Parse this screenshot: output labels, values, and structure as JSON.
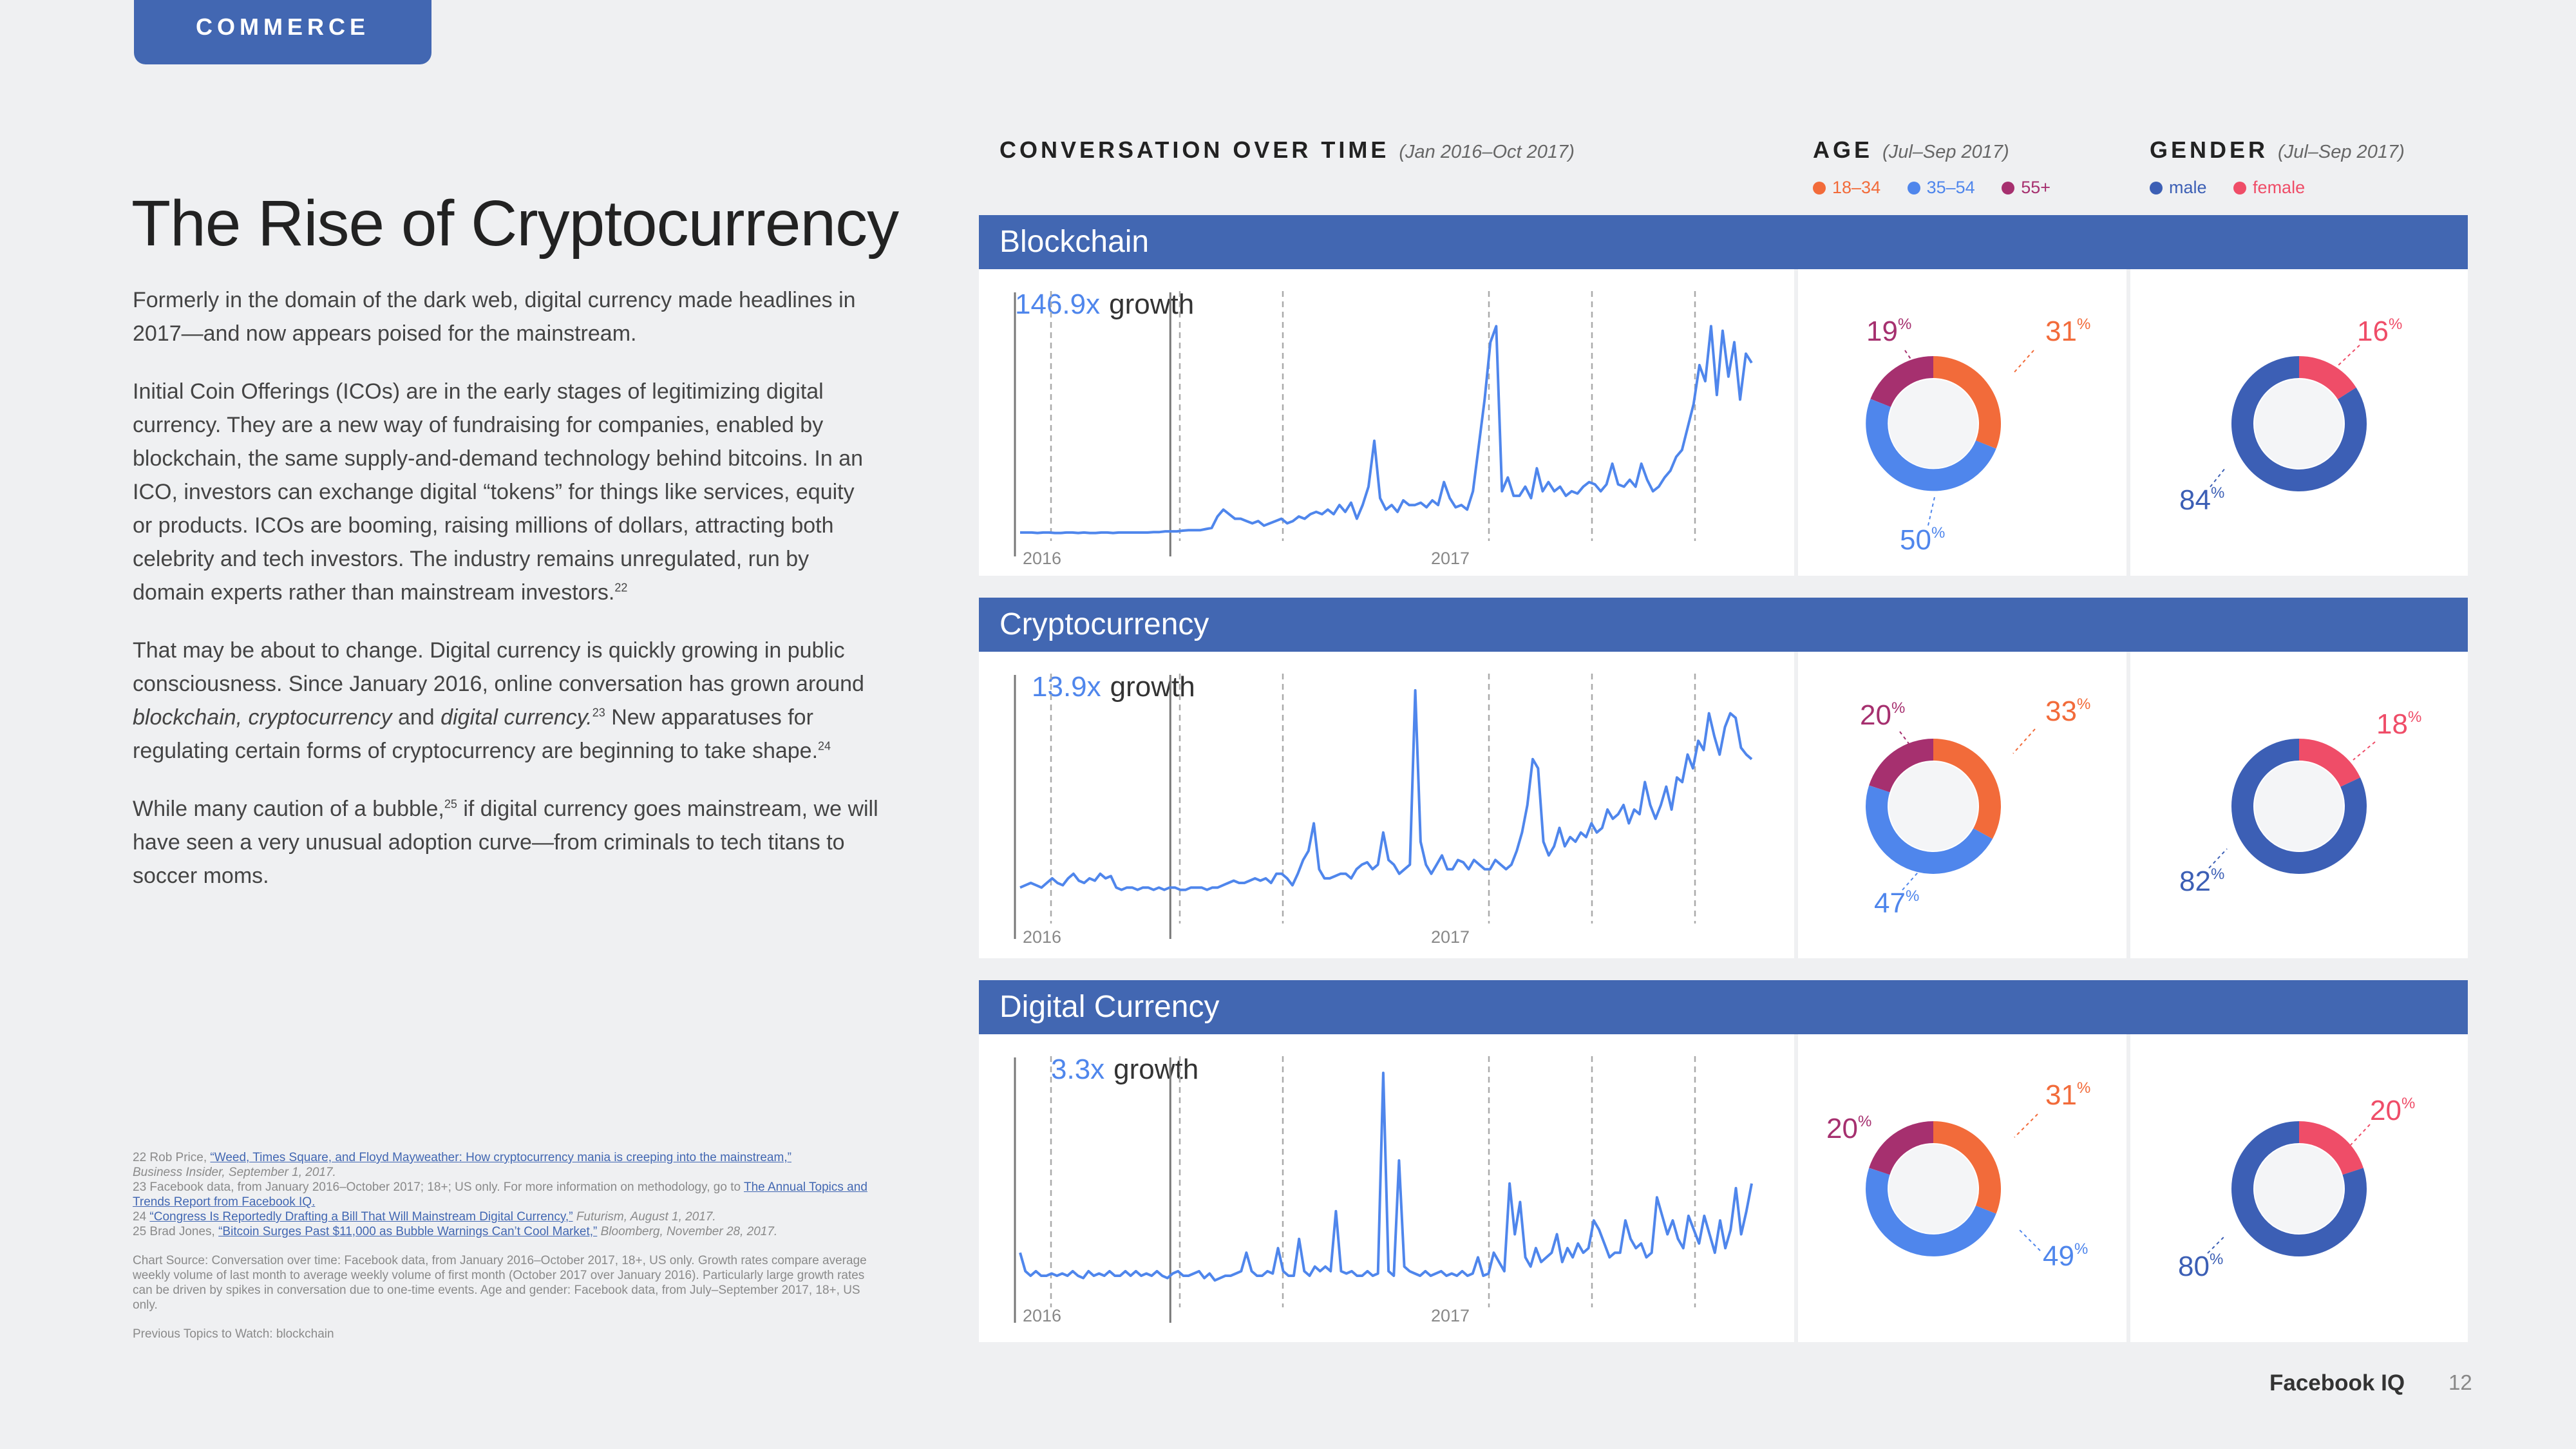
{
  "section_tab": "COMMERCE",
  "title": "The Rise of Cryptocurrency",
  "intro": {
    "p1": "Formerly in the domain of the dark web, digital currency made headlines in 2017—and now appears poised for the mainstream.",
    "p2": "Initial Coin Offerings (ICOs) are in the early stages of legitimizing digital currency. They are a new way of fundraising for companies, enabled by blockchain, the same supply-and-demand technology behind bitcoins. In an ICO, investors can exchange digital “tokens” for things like services, equity or products. ICOs are booming, raising millions of dollars, attracting both celebrity and tech investors. The industry remains unregulated, run by domain experts rather than mainstream investors.",
    "p2_ref": "22",
    "p3_a": "That may be about to change. Digital currency is quickly growing in public consciousness. Since January 2016, online conversation has grown around ",
    "p3_t1": "blockchain, cryptocurrency",
    "p3_b": " and ",
    "p3_t2": "digital currency.",
    "p3_ref1": "23",
    "p3_c": " New apparatuses for regulating certain forms of cryptocurrency are beginning to take shape.",
    "p3_ref2": "24",
    "p4_a": "While many caution of a bubble,",
    "p4_ref": "25",
    "p4_b": " if digital currency goes mainstream, we will have seen a very unusual adoption curve—from criminals to tech titans to soccer moms."
  },
  "footnotes": {
    "fn22_pre": "22  Rob Price, ",
    "fn22_link": "“Weed, Times Square, and Floyd Mayweather: How cryptocurrency mania is creeping into the mainstream,”",
    "fn22_post": "Business Insider, September 1, 2017.",
    "fn23_pre": "23  Facebook data, from January 2016–October 2017; 18+; US only. For more information on methodology, go to ",
    "fn23_link": "The Annual Topics and Trends Report from Facebook IQ.",
    "fn24_pre": "24  ",
    "fn24_link": "“Congress Is Reportedly Drafting a Bill That Will Mainstream Digital Currency,”",
    "fn24_post": " Futurism, August 1, 2017.",
    "fn25_pre": "25  Brad Jones, ",
    "fn25_link": "“Bitcoin Surges Past $11,000 as Bubble Warnings Can’t Cool Market,”",
    "fn25_post": " Bloomberg, November 28, 2017.",
    "chart_source": "Chart Source: Conversation over time: Facebook data, from January 2016–October 2017, 18+, US only. Growth rates compare average weekly volume of last month to average weekly volume of first month (October 2017 over January 2016). Particularly large growth rates can be driven by spikes in conversation due to one-time events. Age and gender: Facebook data, from July–September 2017, 18+, US only.",
    "previous": "Previous Topics to Watch: blockchain"
  },
  "headers": {
    "conversation": "CONVERSATION OVER TIME",
    "conversation_range": "(Jan 2016–Oct 2017)",
    "age": "AGE",
    "age_range": "(Jul–Sep 2017)",
    "gender": "GENDER",
    "gender_range": "(Jul–Sep 2017)"
  },
  "legend": {
    "age": [
      {
        "label": "18–34",
        "color": "#f26b3a"
      },
      {
        "label": "35–54",
        "color": "#4f86ec"
      },
      {
        "label": "55+",
        "color": "#a6306f"
      }
    ],
    "gender": [
      {
        "label": "male",
        "color": "#3c5fb5"
      },
      {
        "label": "female",
        "color": "#ef4d68"
      }
    ]
  },
  "growth_word": "growth",
  "pct_sign": "%",
  "years": [
    "2016",
    "2017"
  ],
  "brand": "Facebook IQ",
  "page_number": "12",
  "chart_data": [
    {
      "type": "line",
      "topic": "Blockchain",
      "growth": "146.9x",
      "x_range": [
        "2016-01",
        "2017-10"
      ],
      "y_range": [
        0,
        100
      ],
      "values": [
        2,
        2,
        2,
        1.8,
        2,
        2,
        1.8,
        1.8,
        2,
        2,
        1.8,
        2,
        1.8,
        1.8,
        2,
        2,
        1.8,
        2,
        2,
        2,
        2,
        2,
        2,
        2.2,
        2.2,
        2.5,
        2.5,
        2.5,
        2.8,
        3,
        3,
        3,
        3.5,
        4,
        9,
        12,
        10,
        8,
        8,
        7,
        6,
        7,
        5,
        6,
        7,
        8,
        6,
        7,
        9,
        8,
        10,
        11,
        10,
        12,
        10,
        14,
        11,
        15,
        8,
        14,
        22,
        42,
        17,
        12,
        14,
        11,
        16,
        14,
        14,
        15,
        13,
        16,
        14,
        24,
        17,
        13,
        14,
        12,
        20,
        40,
        60,
        85,
        92,
        20,
        26,
        18,
        18,
        22,
        17,
        30,
        20,
        24,
        20,
        22,
        18,
        20,
        19,
        22,
        24,
        23,
        20,
        23,
        32,
        23,
        22,
        25,
        22,
        32,
        25,
        20,
        22,
        26,
        29,
        35,
        38,
        48,
        58,
        75,
        68,
        92,
        62,
        90,
        70,
        85,
        60,
        80,
        76
      ]
    },
    {
      "type": "line",
      "topic": "Cryptocurrency",
      "growth": "13.9x",
      "x_range": [
        "2016-01",
        "2017-10"
      ],
      "y_range": [
        0,
        100
      ],
      "values": [
        14,
        15,
        16,
        15,
        14,
        16,
        18,
        16,
        15,
        18,
        20,
        17,
        16,
        18,
        17,
        20,
        18,
        19,
        14,
        13,
        14,
        14,
        13,
        14,
        14,
        13,
        14,
        13,
        14,
        14,
        13,
        13,
        14,
        14,
        14,
        13,
        14,
        14,
        15,
        16,
        17,
        16,
        16,
        17,
        18,
        17,
        18,
        16,
        20,
        20,
        18,
        15,
        20,
        26,
        30,
        42,
        22,
        18,
        18,
        19,
        20,
        20,
        18,
        22,
        24,
        25,
        22,
        24,
        38,
        26,
        24,
        20,
        22,
        24,
        100,
        34,
        24,
        20,
        24,
        28,
        22,
        22,
        26,
        25,
        22,
        26,
        24,
        22,
        22,
        26,
        24,
        22,
        24,
        30,
        38,
        50,
        70,
        66,
        34,
        28,
        32,
        40,
        32,
        36,
        34,
        38,
        36,
        42,
        38,
        40,
        48,
        44,
        46,
        50,
        42,
        48,
        46,
        60,
        50,
        44,
        50,
        58,
        48,
        62,
        60,
        72,
        66,
        78,
        74,
        90,
        80,
        72,
        84,
        90,
        88,
        75,
        72,
        70
      ]
    },
    {
      "type": "line",
      "topic": "Digital Currency",
      "growth": "3.3x",
      "x_range": [
        "2016-01",
        "2017-10"
      ],
      "y_range": [
        0,
        100
      ],
      "values": [
        22,
        14,
        12,
        14,
        12,
        12,
        13,
        12,
        13,
        12,
        14,
        12,
        11,
        14,
        12,
        13,
        12,
        14,
        12,
        12,
        14,
        12,
        14,
        12,
        13,
        12,
        14,
        12,
        11,
        13,
        14,
        12,
        12,
        13,
        14,
        11,
        13,
        10,
        11,
        12,
        12,
        13,
        14,
        22,
        14,
        12,
        12,
        14,
        13,
        24,
        14,
        12,
        12,
        28,
        14,
        12,
        16,
        14,
        16,
        14,
        40,
        14,
        13,
        14,
        12,
        12,
        14,
        12,
        13,
        100,
        14,
        12,
        62,
        16,
        14,
        13,
        12,
        14,
        12,
        13,
        14,
        12,
        13,
        12,
        14,
        12,
        13,
        20,
        12,
        13,
        22,
        18,
        14,
        52,
        30,
        44,
        20,
        16,
        24,
        18,
        20,
        22,
        30,
        18,
        24,
        20,
        26,
        22,
        24,
        36,
        32,
        26,
        20,
        22,
        22,
        36,
        28,
        24,
        26,
        20,
        22,
        46,
        38,
        30,
        36,
        28,
        24,
        38,
        32,
        26,
        38,
        30,
        22,
        36,
        24,
        32,
        50,
        30,
        40,
        52
      ]
    }
  ],
  "age_data": [
    {
      "topic": "Blockchain",
      "values": {
        "18–34": 31,
        "35–54": 50,
        "55+": 19
      }
    },
    {
      "topic": "Cryptocurrency",
      "values": {
        "18–34": 33,
        "35–54": 47,
        "55+": 20
      }
    },
    {
      "topic": "Digital Currency",
      "values": {
        "18–34": 31,
        "35–54": 49,
        "55+": 20
      }
    }
  ],
  "gender_data": [
    {
      "topic": "Blockchain",
      "values": {
        "male": 84,
        "female": 16
      }
    },
    {
      "topic": "Cryptocurrency",
      "values": {
        "male": 82,
        "female": 18
      }
    },
    {
      "topic": "Digital Currency",
      "values": {
        "male": 80,
        "female": 20
      }
    }
  ]
}
